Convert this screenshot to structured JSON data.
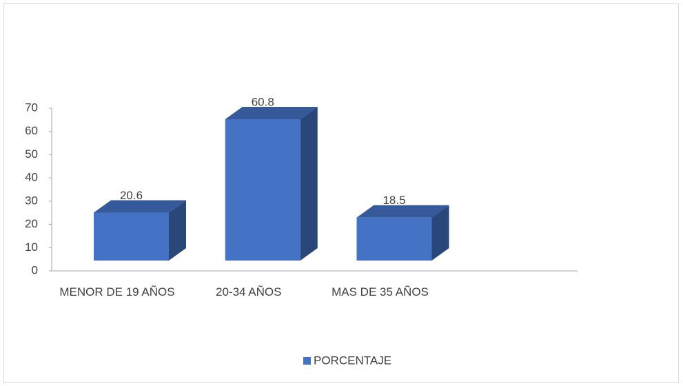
{
  "chart_data": {
    "type": "bar3d",
    "categories": [
      "MENOR DE 19 AÑOS",
      "20-34 AÑOS",
      "MAS DE 35 AÑOS"
    ],
    "series": [
      {
        "name": "PORCENTAJE",
        "color": "#4472c4",
        "values": [
          20.6,
          60.8,
          18.5
        ]
      }
    ],
    "ylim": [
      0,
      70
    ],
    "yticks": [
      0,
      10,
      20,
      30,
      40,
      50,
      60,
      70
    ],
    "legend": "bottom"
  }
}
